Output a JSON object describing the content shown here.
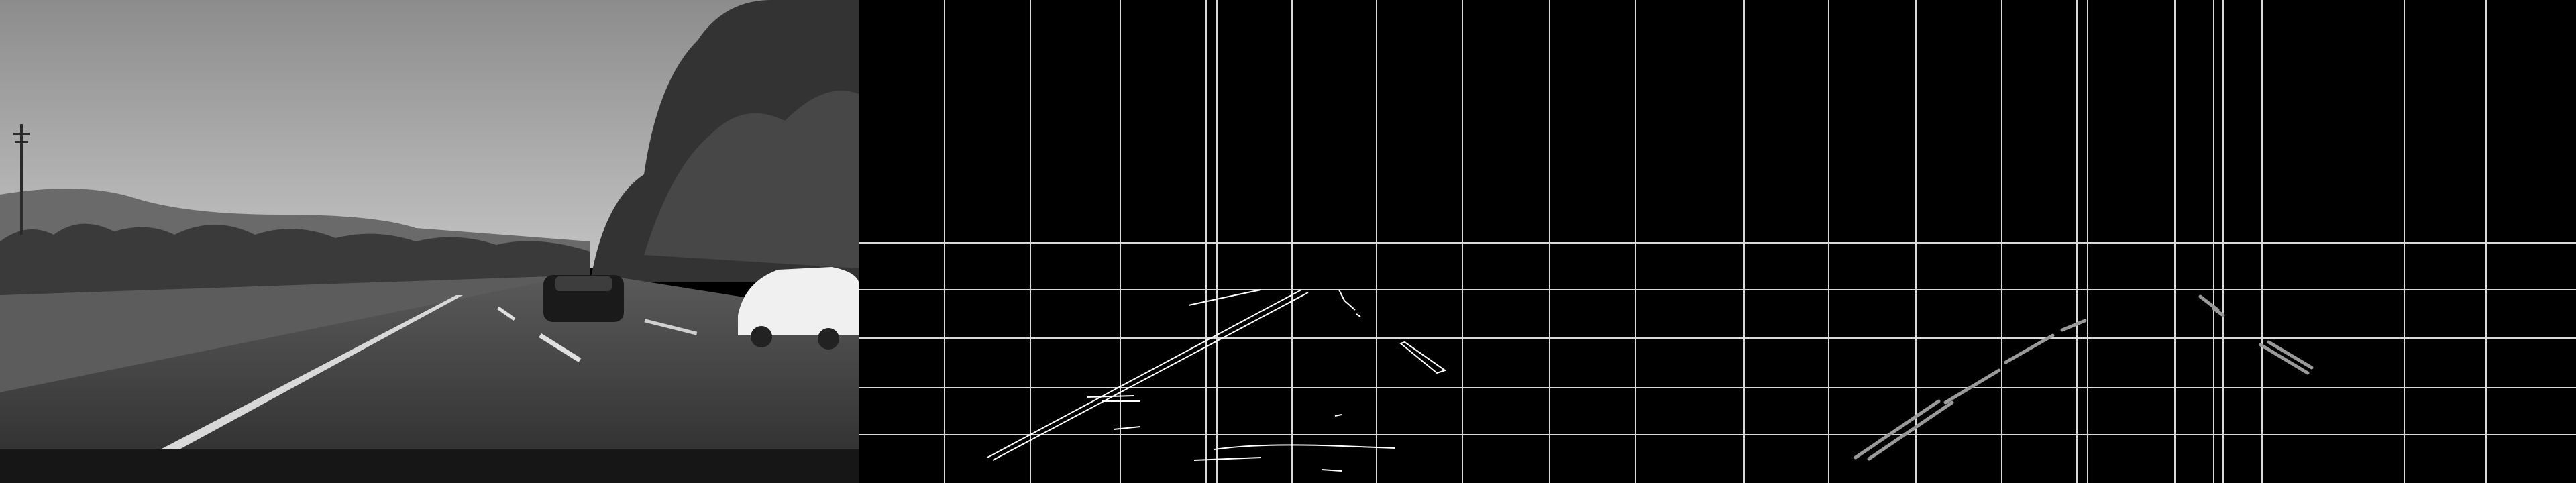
{
  "strip": {
    "panels": [
      {
        "name": "road-photo-grayscale"
      },
      {
        "name": "canny-edge-map"
      },
      {
        "name": "hough-lane-lines"
      }
    ]
  },
  "colors": {
    "background": "#000000",
    "edge": "#ffffff",
    "grid": "#d9d9d9",
    "sky_top": "#8a8a8a",
    "sky_bottom": "#bdbdbd",
    "road": "#3e3e3e",
    "trees": "#2a2a2a"
  }
}
